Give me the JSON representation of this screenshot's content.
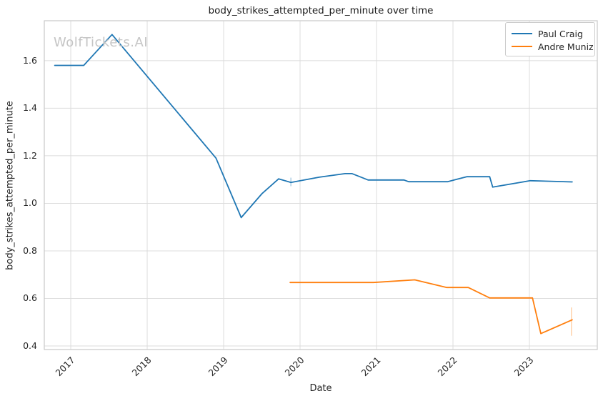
{
  "figure": {
    "title": "body_strikes_attempted_per_minute over time",
    "watermark": "WolfTickets.AI",
    "xlabel": "Date",
    "ylabel": "body_strikes_attempted_per_minute"
  },
  "colors": {
    "series_blue": "#1f77b4",
    "series_orange": "#ff7f0e",
    "grid": "#dcdcdc",
    "spine": "#c9c9c9",
    "text": "#262626",
    "watermark": "#c5c5c5"
  },
  "chart_data": {
    "type": "line",
    "title": "body_strikes_attempted_per_minute over time",
    "xlabel": "Date",
    "ylabel": "body_strikes_attempted_per_minute",
    "x_unit": "decimal_year",
    "xlim": [
      2016.654,
      2023.888
    ],
    "ylim": [
      0.385,
      1.768
    ],
    "x_ticks": [
      2017,
      2018,
      2019,
      2020,
      2021,
      2022,
      2023
    ],
    "y_ticks": [
      0.4,
      0.6,
      0.8,
      1.0,
      1.2,
      1.4,
      1.6
    ],
    "grid": true,
    "legend_position": "upper right",
    "series": [
      {
        "name": "Paul Craig",
        "color": "#1f77b4",
        "x": [
          2016.79,
          2017.17,
          2017.54,
          2018.9,
          2019.23,
          2019.5,
          2019.72,
          2019.88,
          2020.25,
          2020.59,
          2020.68,
          2020.89,
          2021.36,
          2021.42,
          2021.93,
          2022.18,
          2022.48,
          2022.52,
          2023.01,
          2023.56
        ],
        "y": [
          1.58,
          1.58,
          1.71,
          1.19,
          0.94,
          1.04,
          1.103,
          1.088,
          1.11,
          1.125,
          1.125,
          1.098,
          1.098,
          1.091,
          1.091,
          1.112,
          1.112,
          1.068,
          1.095,
          1.09
        ]
      },
      {
        "name": "Andre Muniz",
        "color": "#ff7f0e",
        "x": [
          2019.87,
          2020.96,
          2021.5,
          2021.92,
          2022.2,
          2022.48,
          2023.04,
          2023.15,
          2023.56
        ],
        "y": [
          0.667,
          0.667,
          0.678,
          0.646,
          0.646,
          0.602,
          0.602,
          0.452,
          0.51
        ]
      }
    ],
    "error_bars": [
      {
        "series": "Paul Craig",
        "x": 2019.88,
        "y_low": 1.072,
        "y_high": 1.108
      },
      {
        "series": "Andre Muniz",
        "x": 2023.55,
        "y_low": 0.443,
        "y_high": 0.562
      }
    ]
  }
}
